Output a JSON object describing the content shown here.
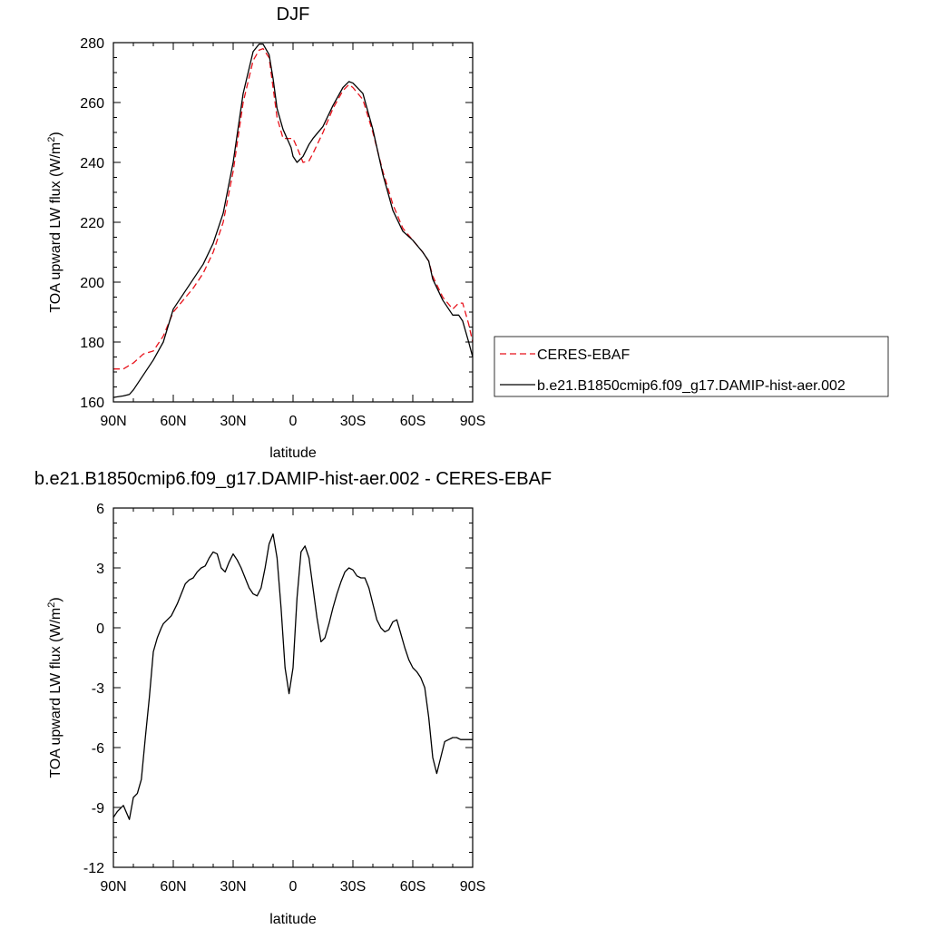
{
  "chart_data": [
    {
      "type": "line",
      "title": "DJF",
      "xlabel": "latitude",
      "ylabel": "TOA upward LW flux (W/m",
      "ylabel_sup": "2",
      "ylabel_end": ")",
      "xlim": [
        90,
        -90
      ],
      "ylim": [
        160,
        280
      ],
      "x_ticks": [
        {
          "value": 90,
          "label": "90N"
        },
        {
          "value": 60,
          "label": "60N"
        },
        {
          "value": 30,
          "label": "30N"
        },
        {
          "value": 0,
          "label": "0"
        },
        {
          "value": -30,
          "label": "30S"
        },
        {
          "value": -60,
          "label": "60S"
        },
        {
          "value": -90,
          "label": "90S"
        }
      ],
      "y_ticks": [
        160,
        180,
        200,
        220,
        240,
        260,
        280
      ],
      "legend_position": "right",
      "series": [
        {
          "name": "CERES-EBAF",
          "color": "#e8121b",
          "dash": "dashed",
          "x": [
            90,
            85,
            80,
            75,
            70,
            65,
            60,
            55,
            50,
            45,
            40,
            35,
            30,
            25,
            20,
            17,
            15,
            12,
            10,
            8,
            5,
            3,
            0,
            -2,
            -5,
            -8,
            -10,
            -15,
            -20,
            -25,
            -28,
            -30,
            -35,
            -40,
            -45,
            -50,
            -55,
            -60,
            -65,
            -68,
            -70,
            -75,
            -80,
            -83,
            -85,
            -88,
            -90
          ],
          "y": [
            171,
            171,
            173,
            176,
            177,
            182,
            190,
            194,
            198,
            203,
            210,
            220,
            237,
            260,
            274,
            277.5,
            278,
            275,
            265,
            255,
            248,
            248,
            248,
            245,
            240,
            240.5,
            243,
            250,
            258,
            264,
            266,
            265,
            261,
            250,
            237,
            226,
            218,
            214,
            210,
            207,
            202,
            195,
            191,
            193,
            193,
            186,
            180
          ]
        },
        {
          "name": "b.e21.B1850cmip6.f09_g17.DAMIP-hist-aer.002",
          "color": "#000000",
          "dash": "solid",
          "x": [
            90,
            85,
            82,
            80,
            75,
            70,
            65,
            60,
            55,
            50,
            45,
            40,
            35,
            30,
            25,
            20,
            17,
            15,
            12,
            10,
            8,
            5,
            3,
            1,
            0,
            -2,
            -5,
            -8,
            -10,
            -15,
            -20,
            -25,
            -28,
            -30,
            -35,
            -40,
            -45,
            -50,
            -55,
            -60,
            -65,
            -68,
            -70,
            -75,
            -80,
            -83,
            -85,
            -88,
            -90
          ],
          "y": [
            161.5,
            162,
            162.5,
            164,
            169,
            174,
            180,
            191,
            196,
            201,
            206,
            213,
            223,
            240,
            263,
            277,
            279.5,
            279.5,
            276,
            268,
            258,
            251,
            248,
            245,
            242,
            240,
            242,
            246,
            248,
            252,
            259,
            265,
            267,
            266.5,
            263,
            251,
            236,
            224,
            217,
            214,
            210,
            207,
            201,
            194,
            189,
            189,
            187,
            180,
            175
          ]
        }
      ]
    },
    {
      "type": "line",
      "title": "b.e21.B1850cmip6.f09_g17.DAMIP-hist-aer.002 - CERES-EBAF",
      "xlabel": "latitude",
      "ylabel": "TOA upward LW flux (W/m",
      "ylabel_sup": "2",
      "ylabel_end": ")",
      "xlim": [
        90,
        -90
      ],
      "ylim": [
        -12,
        6
      ],
      "x_ticks": [
        {
          "value": 90,
          "label": "90N"
        },
        {
          "value": 60,
          "label": "60N"
        },
        {
          "value": 30,
          "label": "30N"
        },
        {
          "value": 0,
          "label": "0"
        },
        {
          "value": -30,
          "label": "30S"
        },
        {
          "value": -60,
          "label": "60S"
        },
        {
          "value": -90,
          "label": "90S"
        }
      ],
      "y_ticks": [
        -12,
        -9,
        -6,
        -3,
        0,
        3,
        6
      ],
      "series": [
        {
          "color": "#000000",
          "dash": "solid",
          "x": [
            90,
            88,
            85,
            82,
            80,
            78,
            76,
            74,
            72,
            70,
            68,
            66,
            65,
            63,
            61,
            60,
            58,
            56,
            54,
            52,
            50,
            48,
            46,
            44,
            42,
            40,
            38,
            36,
            34,
            32,
            30,
            28,
            26,
            24,
            22,
            20,
            18,
            16,
            14,
            12,
            10,
            8,
            6,
            4,
            2,
            0,
            -2,
            -4,
            -6,
            -8,
            -10,
            -12,
            -14,
            -16,
            -18,
            -20,
            -22,
            -24,
            -26,
            -28,
            -30,
            -32,
            -34,
            -36,
            -38,
            -40,
            -42,
            -44,
            -46,
            -48,
            -50,
            -52,
            -54,
            -56,
            -58,
            -60,
            -62,
            -64,
            -66,
            -68,
            -70,
            -72,
            -74,
            -76,
            -78,
            -80,
            -82,
            -84,
            -86,
            -88,
            -90
          ],
          "y": [
            -9.5,
            -9.2,
            -8.9,
            -9.6,
            -8.5,
            -8.3,
            -7.6,
            -5.5,
            -3.5,
            -1.2,
            -0.5,
            0,
            0.2,
            0.4,
            0.6,
            0.8,
            1.2,
            1.7,
            2.2,
            2.4,
            2.5,
            2.8,
            3.0,
            3.1,
            3.5,
            3.8,
            3.7,
            3.0,
            2.8,
            3.3,
            3.7,
            3.4,
            3.0,
            2.5,
            2.0,
            1.7,
            1.6,
            2.0,
            3.0,
            4.2,
            4.7,
            3.5,
            1.0,
            -2.0,
            -3.3,
            -2.0,
            1.5,
            3.8,
            4.1,
            3.5,
            2.0,
            0.5,
            -0.7,
            -0.5,
            0.2,
            1.0,
            1.7,
            2.3,
            2.8,
            3.0,
            2.9,
            2.6,
            2.5,
            2.5,
            2.0,
            1.2,
            0.4,
            0.0,
            -0.2,
            -0.1,
            0.3,
            0.4,
            -0.3,
            -1.0,
            -1.6,
            -2.0,
            -2.2,
            -2.5,
            -3.0,
            -4.5,
            -6.5,
            -7.3,
            -6.5,
            -5.7,
            -5.6,
            -5.5,
            -5.5,
            -5.6,
            -5.6,
            -5.6,
            -5.6
          ]
        }
      ]
    }
  ]
}
